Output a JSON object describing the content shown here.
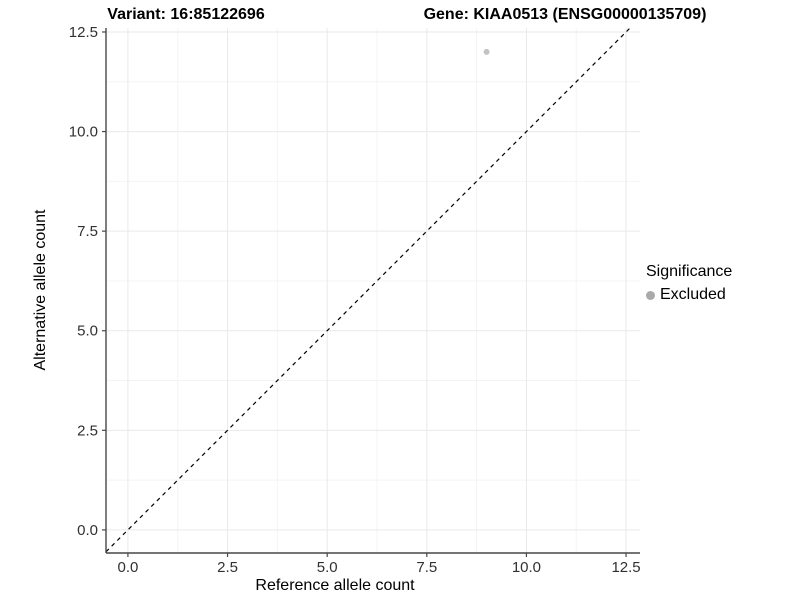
{
  "header": {
    "variant_title": "Variant: 16:85122696",
    "gene_title": "Gene: KIAA0513 (ENSG00000135709)"
  },
  "axes": {
    "x_label": "Reference allele count",
    "y_label": "Alternative allele count"
  },
  "legend": {
    "title": "Significance",
    "items": [
      {
        "label": "Excluded",
        "color": "#a9a9a9"
      }
    ]
  },
  "chart_data": {
    "type": "scatter",
    "title_left": "Variant: 16:85122696",
    "title_right": "Gene: KIAA0513 (ENSG00000135709)",
    "xlabel": "Reference allele count",
    "ylabel": "Alternative allele count",
    "xlim": [
      -0.55,
      12.85
    ],
    "ylim": [
      -0.58,
      12.6
    ],
    "x_ticks": [
      0.0,
      2.5,
      5.0,
      7.5,
      10.0,
      12.5
    ],
    "y_ticks": [
      0.0,
      2.5,
      5.0,
      7.5,
      10.0,
      12.5
    ],
    "x_tick_labels": [
      "0.0",
      "2.5",
      "5.0",
      "7.5",
      "10.0",
      "12.5"
    ],
    "y_tick_labels": [
      "0.0",
      "2.5",
      "5.0",
      "7.5",
      "10.0",
      "12.5"
    ],
    "minor_ticks": [
      1.25,
      3.75,
      6.25,
      8.75,
      11.25
    ],
    "grid": true,
    "legend_position": "right",
    "series": [
      {
        "name": "Excluded",
        "color": "#c3c3c3",
        "points": [
          {
            "x": 9,
            "y": 12
          }
        ]
      }
    ],
    "reference_line": {
      "type": "identity",
      "equation": "y = x",
      "style": "dashed",
      "color": "#000000"
    }
  },
  "colors": {
    "background": "#ffffff",
    "grid_major": "#e9e9e9",
    "grid_minor": "#f4f4f4",
    "axis_line": "#474747",
    "tick_label": "#313131",
    "point": "#c3c3c3"
  }
}
